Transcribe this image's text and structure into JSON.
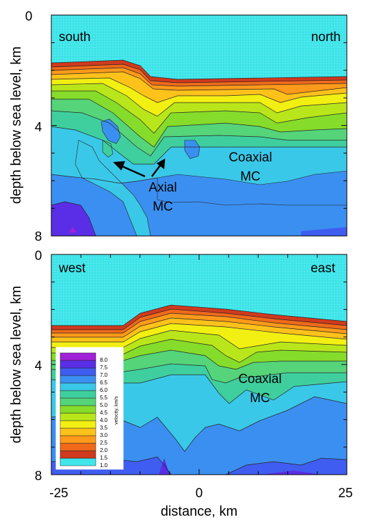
{
  "figure": {
    "xlabel": "distance, km",
    "ylabel": "depth below sea level, km"
  },
  "legend": {
    "title": "velocity, km/s",
    "levels": [
      "1.0",
      "1.5",
      "2.0",
      "2.5",
      "3.0",
      "3.5",
      "4.0",
      "4.5",
      "5.0",
      "5.5",
      "6.0",
      "6.5",
      "7.0",
      "7.5",
      "8.0"
    ]
  },
  "colors": {
    "water": "#3fe6ea",
    "v1.5": "#d03a1e",
    "v2.0": "#f06a1a",
    "v2.5": "#ff9a1a",
    "v3.0": "#ffc21a",
    "v3.5": "#f2ef12",
    "v4.0": "#b9e61a",
    "v4.5": "#86dc2a",
    "v5.0": "#55d47a",
    "v5.5": "#3fcf9e",
    "v6.0": "#3ac8e8",
    "v6.5": "#3b8ff0",
    "v7.0": "#3f5df0",
    "v7.5": "#5a2ee6",
    "v8.0": "#a021d8"
  },
  "chart_data": [
    {
      "type": "heatmap",
      "panel": "top",
      "left_label": "south",
      "right_label": "north",
      "xlim": [
        -25,
        25
      ],
      "ylim": [
        8,
        0
      ],
      "y_ticks": [
        "0",
        "4",
        "8"
      ],
      "annotations": [
        {
          "text_lines": [
            "Axial",
            "MC"
          ]
        },
        {
          "text_lines": [
            "Coaxial",
            "MC"
          ]
        }
      ],
      "seafloor_depth_km": {
        "x": [
          -25,
          -15,
          -10,
          -7,
          -5,
          0,
          10,
          25
        ],
        "y": [
          2.4,
          2.3,
          2.2,
          2.8,
          3.0,
          3.0,
          2.8,
          2.7
        ]
      }
    },
    {
      "type": "heatmap",
      "panel": "bottom",
      "left_label": "west",
      "right_label": "east",
      "xlim": [
        -25,
        25
      ],
      "ylim": [
        8,
        0
      ],
      "x_ticks": [
        "-25",
        "0",
        "25"
      ],
      "y_ticks": [
        "0",
        "4",
        "8"
      ],
      "annotations": [
        {
          "text_lines": [
            "Coaxial",
            "MC"
          ]
        }
      ],
      "seafloor_depth_km": {
        "x": [
          -25,
          -13,
          -10,
          -5,
          0,
          10,
          25
        ],
        "y": [
          2.7,
          2.7,
          2.2,
          2.0,
          2.1,
          2.3,
          2.5
        ]
      }
    }
  ]
}
